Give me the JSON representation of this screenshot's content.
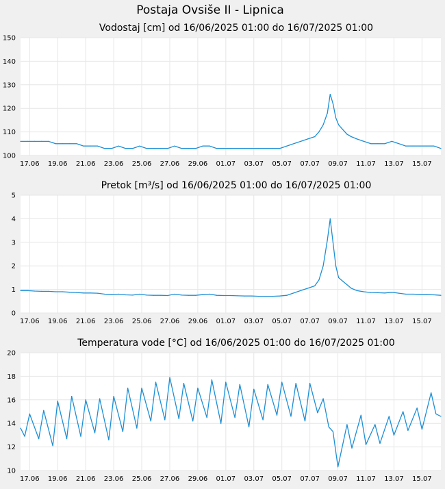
{
  "page": {
    "title": "Postaja Ovsiše II - Lipnica"
  },
  "colors": {
    "background": "#f0f0f0",
    "plot_background": "#ffffff",
    "grid": "#e6e6e6",
    "series": "#1b8fd6",
    "text": "#000000"
  },
  "chart_data": [
    {
      "type": "line",
      "title": "Vodostaj [cm] od 16/06/2025 01:00 do 16/07/2025 01:00",
      "xlabel": "",
      "ylabel": "",
      "ylim": [
        100,
        150
      ],
      "yticks": [
        "100",
        "110",
        "120",
        "130",
        "140",
        "150"
      ],
      "xticks": [
        "17.06",
        "19.06",
        "21.06",
        "23.06",
        "25.06",
        "27.06",
        "29.06",
        "01.07",
        "03.07",
        "05.07",
        "07.07",
        "09.07",
        "11.07",
        "13.07",
        "15.07"
      ],
      "grid": true,
      "series": [
        {
          "x": [
            0,
            0.5,
            1,
            1.5,
            2,
            2.5,
            3,
            3.5,
            4,
            4.5,
            5,
            5.5,
            6,
            6.5,
            7,
            7.5,
            8,
            8.5,
            9,
            9.5,
            10,
            10.5,
            11,
            11.5,
            12,
            12.5,
            13,
            13.5,
            14,
            14.5,
            15,
            15.5,
            16,
            16.5,
            17,
            17.5,
            18,
            18.5,
            19,
            19.5,
            20,
            20.5,
            21,
            21.3,
            21.6,
            21.9,
            22.1,
            22.3,
            22.5,
            22.7,
            23.0,
            23.3,
            23.6,
            24,
            24.5,
            25,
            25.5,
            26,
            26.5,
            27,
            27.5,
            28,
            28.5,
            29,
            29.5,
            30
          ],
          "values": [
            106,
            106,
            106,
            106,
            106,
            105,
            105,
            105,
            105,
            104,
            104,
            104,
            103,
            103,
            104,
            103,
            103,
            104,
            103,
            103,
            103,
            103,
            104,
            103,
            103,
            103,
            104,
            104,
            103,
            103,
            103,
            103,
            103,
            103,
            103,
            103,
            103,
            103,
            104,
            105,
            106,
            107,
            108,
            110,
            113,
            118,
            126,
            122,
            116,
            113,
            111,
            109,
            108,
            107,
            106,
            105,
            105,
            105,
            106,
            105,
            104,
            104,
            104,
            104,
            104,
            103
          ]
        }
      ]
    },
    {
      "type": "line",
      "title": "Pretok [m³/s] od 16/06/2025 01:00 do 16/07/2025 01:00",
      "xlabel": "",
      "ylabel": "",
      "ylim": [
        0,
        5
      ],
      "yticks": [
        "0",
        "1",
        "2",
        "3",
        "4",
        "5"
      ],
      "xticks": [
        "17.06",
        "19.06",
        "21.06",
        "23.06",
        "25.06",
        "27.06",
        "29.06",
        "01.07",
        "03.07",
        "05.07",
        "07.07",
        "09.07",
        "11.07",
        "13.07",
        "15.07"
      ],
      "grid": true,
      "series": [
        {
          "x": [
            0,
            0.5,
            1,
            1.5,
            2,
            2.5,
            3,
            3.5,
            4,
            4.5,
            5,
            5.5,
            6,
            6.5,
            7,
            7.5,
            8,
            8.5,
            9,
            9.5,
            10,
            10.5,
            11,
            11.5,
            12,
            12.5,
            13,
            13.5,
            14,
            14.5,
            15,
            15.5,
            16,
            16.5,
            17,
            17.5,
            18,
            18.5,
            19,
            19.5,
            20,
            20.5,
            21,
            21.3,
            21.6,
            21.9,
            22.1,
            22.3,
            22.5,
            22.7,
            23.0,
            23.3,
            23.6,
            24,
            24.5,
            25,
            25.5,
            26,
            26.5,
            27,
            27.5,
            28,
            28.5,
            29,
            29.5,
            30
          ],
          "values": [
            0.95,
            0.95,
            0.93,
            0.92,
            0.92,
            0.9,
            0.9,
            0.88,
            0.87,
            0.85,
            0.85,
            0.84,
            0.8,
            0.78,
            0.8,
            0.77,
            0.76,
            0.8,
            0.76,
            0.75,
            0.75,
            0.74,
            0.8,
            0.76,
            0.75,
            0.75,
            0.78,
            0.8,
            0.75,
            0.74,
            0.74,
            0.73,
            0.72,
            0.72,
            0.71,
            0.71,
            0.71,
            0.72,
            0.75,
            0.85,
            0.95,
            1.05,
            1.15,
            1.4,
            2.0,
            3.1,
            4.0,
            3.0,
            2.0,
            1.5,
            1.35,
            1.2,
            1.05,
            0.95,
            0.9,
            0.87,
            0.86,
            0.85,
            0.88,
            0.84,
            0.8,
            0.8,
            0.79,
            0.78,
            0.77,
            0.75
          ]
        }
      ]
    },
    {
      "type": "line",
      "title": "Temperatura vode [°C] od 16/06/2025 01:00 do 16/07/2025 01:00",
      "xlabel": "",
      "ylabel": "",
      "ylim": [
        10,
        20
      ],
      "yticks": [
        "10",
        "12",
        "14",
        "16",
        "18",
        "20"
      ],
      "xticks": [
        "17.06",
        "19.06",
        "21.06",
        "23.06",
        "25.06",
        "27.06",
        "29.06",
        "01.07",
        "03.07",
        "05.07",
        "07.07",
        "09.07",
        "11.07",
        "13.07",
        "15.07"
      ],
      "grid": true,
      "series": [
        {
          "x": [
            0,
            0.3,
            0.65,
            1.3,
            1.65,
            2.3,
            2.65,
            3.3,
            3.65,
            4.3,
            4.65,
            5.3,
            5.65,
            6.3,
            6.65,
            7.3,
            7.65,
            8.3,
            8.65,
            9.3,
            9.65,
            10.3,
            10.65,
            11.3,
            11.65,
            12.3,
            12.65,
            13.3,
            13.65,
            14.3,
            14.65,
            15.3,
            15.65,
            16.3,
            16.65,
            17.3,
            17.65,
            18.3,
            18.65,
            19.3,
            19.65,
            20.3,
            20.65,
            21.2,
            21.6,
            22.0,
            22.3,
            22.65,
            23.3,
            23.65,
            24.3,
            24.65,
            25.3,
            25.65,
            26.3,
            26.65,
            27.3,
            27.65,
            28.3,
            28.65,
            29.3,
            29.65,
            30
          ],
          "values": [
            13.6,
            12.9,
            14.8,
            12.7,
            15.1,
            12.1,
            15.9,
            12.7,
            16.3,
            12.9,
            16.0,
            13.2,
            16.1,
            12.6,
            16.3,
            13.3,
            17.0,
            13.6,
            17.0,
            14.2,
            17.5,
            14.3,
            17.9,
            14.4,
            17.4,
            14.2,
            17.0,
            14.5,
            17.7,
            14.0,
            17.5,
            14.5,
            17.3,
            13.7,
            16.9,
            14.3,
            17.3,
            14.7,
            17.5,
            14.6,
            17.4,
            14.2,
            17.4,
            14.9,
            16.1,
            13.7,
            13.3,
            10.3,
            13.9,
            11.9,
            14.7,
            12.2,
            13.9,
            12.3,
            14.6,
            13.0,
            15.0,
            13.4,
            15.3,
            13.5,
            16.6,
            14.8,
            14.6
          ]
        }
      ]
    }
  ]
}
